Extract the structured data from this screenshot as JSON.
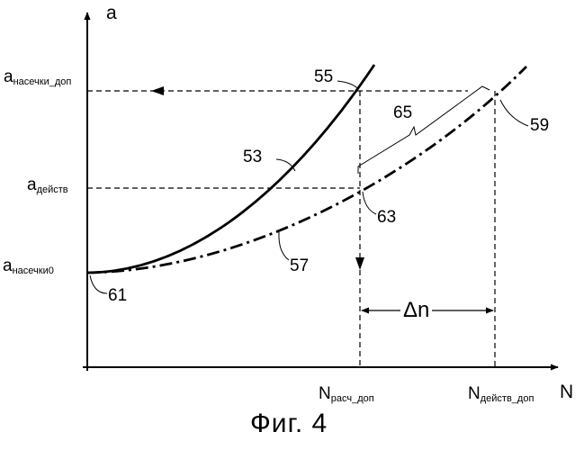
{
  "axes": {
    "y_label": "a",
    "x_label": "N"
  },
  "y_ticks": {
    "notch_allowed": {
      "main": "a",
      "sub": "насечки_доп"
    },
    "effective": {
      "main": "a",
      "sub": "действ"
    },
    "notch_initial": {
      "main": "a",
      "sub": "насечки0"
    }
  },
  "x_ticks": {
    "calc_allowed": {
      "main": "N",
      "sub": "расч_доп"
    },
    "effective_allowed": {
      "main": "N",
      "sub": "действ_доп"
    }
  },
  "refs": {
    "r53": "53",
    "r55": "55",
    "r57": "57",
    "r59": "59",
    "r61": "61",
    "r63": "63",
    "r65": "65"
  },
  "delta": "Δn",
  "caption": "Фиг. 4",
  "colors": {
    "ink": "#000000",
    "background": "#ffffff"
  }
}
